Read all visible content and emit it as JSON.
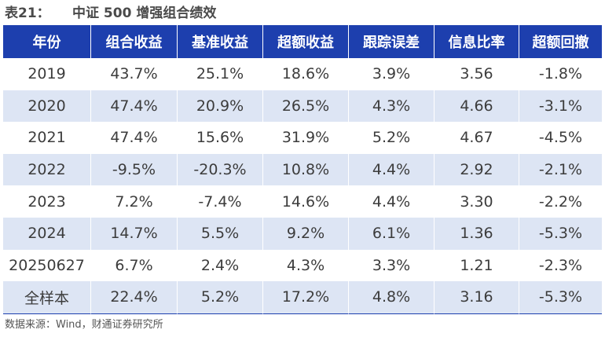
{
  "title": {
    "number": "表21：",
    "text": "中证 500 增强组合绩效"
  },
  "table": {
    "headers": [
      "年份",
      "组合收益",
      "基准收益",
      "超额收益",
      "跟踪误差",
      "信息比率",
      "超额回撤"
    ],
    "rows": [
      [
        "2019",
        "43.7%",
        "25.1%",
        "18.6%",
        "3.9%",
        "3.56",
        "-1.8%"
      ],
      [
        "2020",
        "47.4%",
        "20.9%",
        "26.5%",
        "4.3%",
        "4.66",
        "-3.1%"
      ],
      [
        "2021",
        "47.4%",
        "15.6%",
        "31.9%",
        "5.2%",
        "4.67",
        "-4.5%"
      ],
      [
        "2022",
        "-9.5%",
        "-20.3%",
        "10.8%",
        "4.4%",
        "2.92",
        "-2.1%"
      ],
      [
        "2023",
        "7.2%",
        "-7.4%",
        "14.6%",
        "4.4%",
        "3.30",
        "-2.2%"
      ],
      [
        "2024",
        "14.7%",
        "5.5%",
        "9.2%",
        "6.1%",
        "1.36",
        "-5.3%"
      ],
      [
        "20250627",
        "6.7%",
        "2.4%",
        "4.3%",
        "3.3%",
        "1.21",
        "-2.3%"
      ],
      [
        "全样本",
        "22.4%",
        "5.2%",
        "17.2%",
        "4.8%",
        "3.16",
        "-5.3%"
      ]
    ]
  },
  "source": "数据来源：Wind，财通证券研究所",
  "colors": {
    "header_bg": "#1d3fae",
    "stripe_bg": "#dde5f4"
  }
}
